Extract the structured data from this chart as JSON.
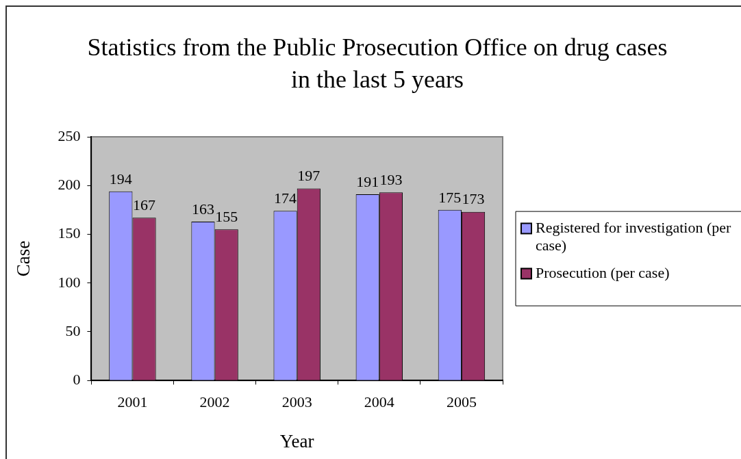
{
  "chart_data": {
    "type": "bar",
    "title": "Statistics from the Public Prosecution Office on drug cases in the last 5 years",
    "xlabel": "Year",
    "ylabel": "Case",
    "categories": [
      "2001",
      "2002",
      "2003",
      "2004",
      "2005"
    ],
    "series": [
      {
        "name": "Registered for investigation (per case)",
        "color": "#9999ff",
        "values": [
          194,
          163,
          174,
          191,
          175
        ]
      },
      {
        "name": "Prosecution (per case)",
        "color": "#993366",
        "values": [
          167,
          155,
          197,
          193,
          173
        ]
      }
    ],
    "ylim": [
      0,
      250
    ],
    "yticks": [
      0,
      50,
      100,
      150,
      200,
      250
    ],
    "legend": "right",
    "data_labels": true
  }
}
